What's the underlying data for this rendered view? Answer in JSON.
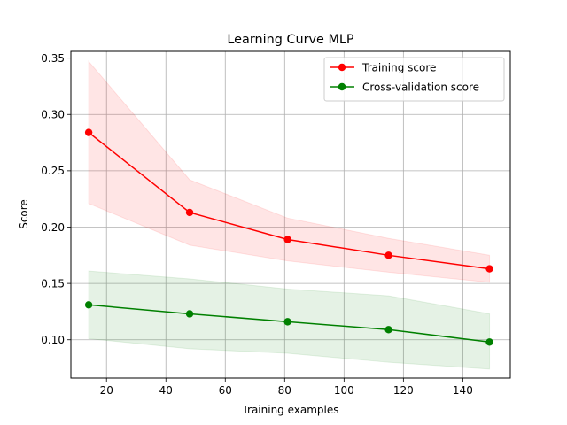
{
  "chart_data": {
    "type": "line",
    "title": "Learning Curve MLP",
    "xlabel": "Training examples",
    "ylabel": "Score",
    "xlim": [
      8,
      156
    ],
    "ylim": [
      0.066,
      0.356
    ],
    "xticks": [
      20,
      40,
      60,
      80,
      100,
      120,
      140
    ],
    "yticks": [
      0.1,
      0.15,
      0.2,
      0.25,
      0.3,
      0.35
    ],
    "ytick_labels": [
      "0.10",
      "0.15",
      "0.20",
      "0.25",
      "0.30",
      "0.35"
    ],
    "grid": true,
    "legend_position": "top-right",
    "x": [
      14,
      48,
      81,
      115,
      149
    ],
    "series": [
      {
        "name": "Training score",
        "color": "#ff0000",
        "band_color": "#ff0000",
        "values": [
          0.284,
          0.213,
          0.189,
          0.175,
          0.163
        ],
        "upper": [
          0.347,
          0.242,
          0.208,
          0.19,
          0.175
        ],
        "lower": [
          0.221,
          0.184,
          0.17,
          0.16,
          0.151
        ]
      },
      {
        "name": "Cross-validation score",
        "color": "#008000",
        "band_color": "#008000",
        "values": [
          0.131,
          0.123,
          0.116,
          0.109,
          0.098
        ],
        "upper": [
          0.161,
          0.154,
          0.145,
          0.139,
          0.123
        ],
        "lower": [
          0.101,
          0.092,
          0.088,
          0.08,
          0.074
        ]
      }
    ]
  }
}
